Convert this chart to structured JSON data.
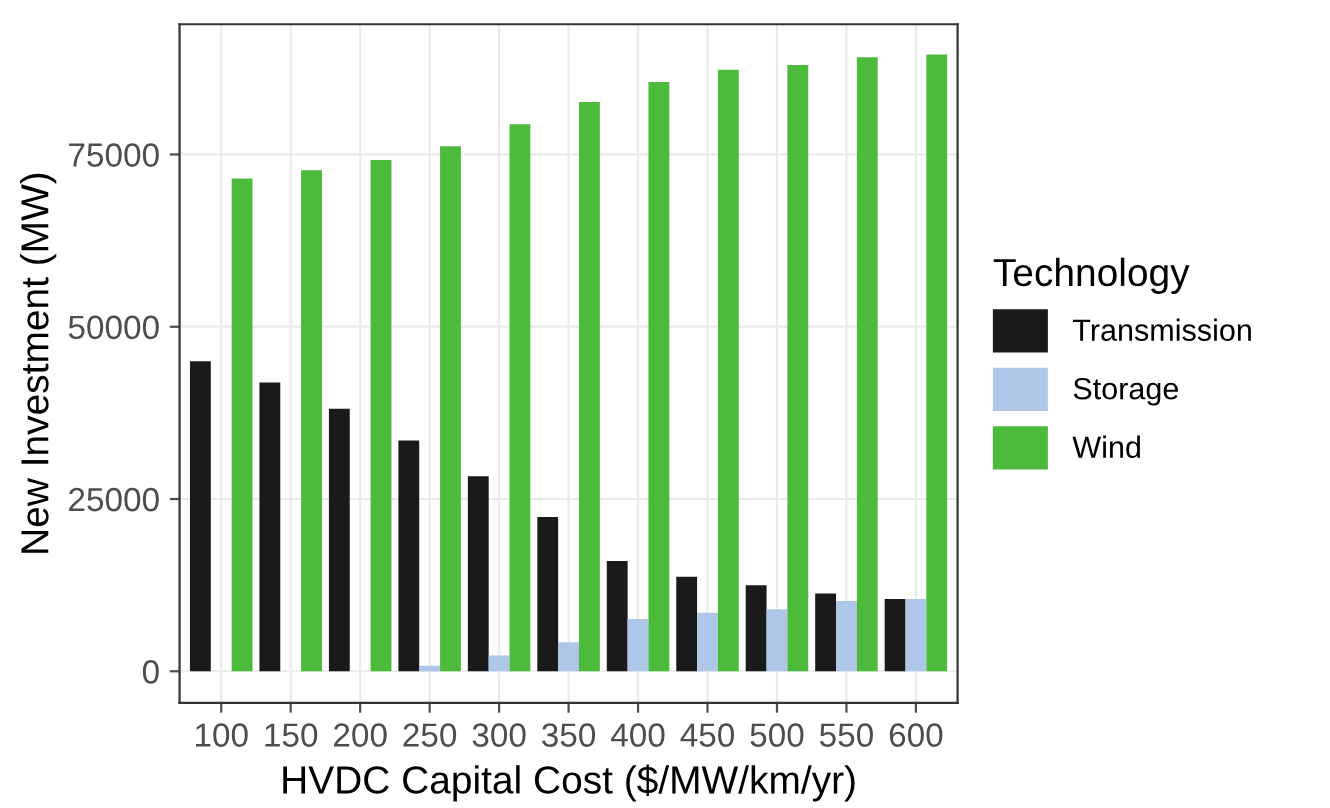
{
  "chart_data": {
    "type": "bar",
    "xlabel": "HVDC Capital Cost ($/MW/km/yr)",
    "ylabel": "New Investment (MW)",
    "legend_title": "Technology",
    "categories": [
      "100",
      "150",
      "200",
      "250",
      "300",
      "350",
      "400",
      "450",
      "500",
      "550",
      "600"
    ],
    "series": [
      {
        "name": "Transmission",
        "color": "#1a1a1a",
        "values": [
          45000,
          41900,
          38100,
          33500,
          28300,
          22400,
          16000,
          13700,
          12500,
          11300,
          10500
        ]
      },
      {
        "name": "Storage",
        "color": "#aec6e8",
        "values": [
          0,
          0,
          0,
          800,
          2300,
          4200,
          7600,
          8500,
          9000,
          10200,
          10500
        ]
      },
      {
        "name": "Wind",
        "color": "#4cbb3c",
        "values": [
          71500,
          72700,
          74200,
          76200,
          79400,
          82600,
          85500,
          87300,
          88000,
          89100,
          89500
        ]
      }
    ],
    "ylim": [
      -4600,
      93900
    ],
    "yticks": [
      0,
      25000,
      50000,
      75000
    ],
    "grid": true,
    "legend": "right"
  }
}
